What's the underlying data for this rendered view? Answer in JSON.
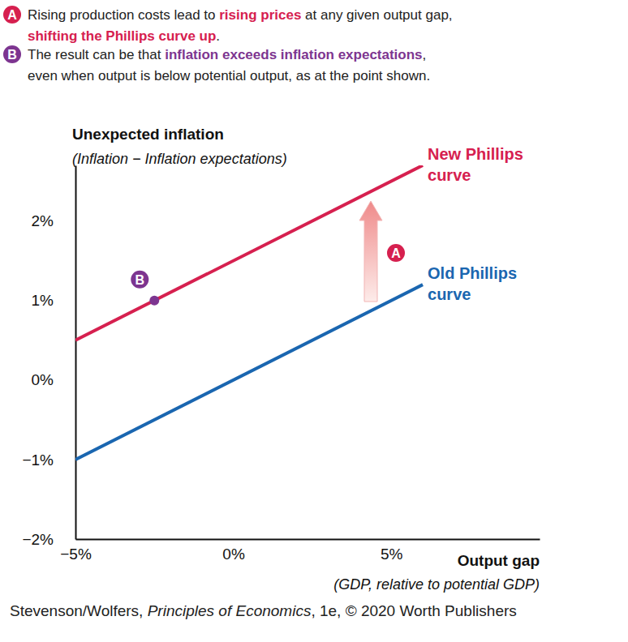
{
  "chart_data": {
    "type": "line",
    "annotations": [
      {
        "label": "A",
        "color": "#d6204f",
        "segments": [
          "Rising production costs lead to ",
          "rising prices",
          " at any given output gap,\n",
          "shifting the Phillips curve up",
          "."
        ]
      },
      {
        "label": "B",
        "color": "#7d3590",
        "segments": [
          "The result can be that ",
          "inflation exceeds inflation expectations",
          ",\neven when output is below potential output, as at the point shown."
        ],
        "point": {
          "x": -2.5,
          "y": 1
        }
      }
    ],
    "ylabel": "Unexpected inflation",
    "ylabel_note": "(Inflation − Inflation expectations)",
    "xlabel": "Output gap",
    "xlabel_note": "(GDP, relative to potential GDP)",
    "x": [
      -5,
      6
    ],
    "series": [
      {
        "name": "Old Phillips curve",
        "color": "#1a66b0",
        "values": [
          -1,
          1.2
        ]
      },
      {
        "name": "New Phillips curve",
        "color": "#d6204f",
        "values": [
          0.5,
          2.7
        ]
      }
    ],
    "xlim": [
      -5,
      9.7
    ],
    "xticks": [
      {
        "value": -5,
        "label": "−5%"
      },
      {
        "value": 0,
        "label": "0%"
      },
      {
        "value": 5,
        "label": "5%"
      }
    ],
    "ylim": [
      -2,
      2.7
    ],
    "yticks": [
      {
        "value": -2,
        "label": "−2%"
      },
      {
        "value": -1,
        "label": "−1%"
      },
      {
        "value": 0,
        "label": "0%"
      },
      {
        "value": 1,
        "label": "1%"
      },
      {
        "value": 2,
        "label": "2%"
      }
    ],
    "grid": false,
    "source": [
      "Stevenson/Wolfers, ",
      "Principles of Economics",
      ", 1e, © 2020 Worth Publishers"
    ]
  }
}
